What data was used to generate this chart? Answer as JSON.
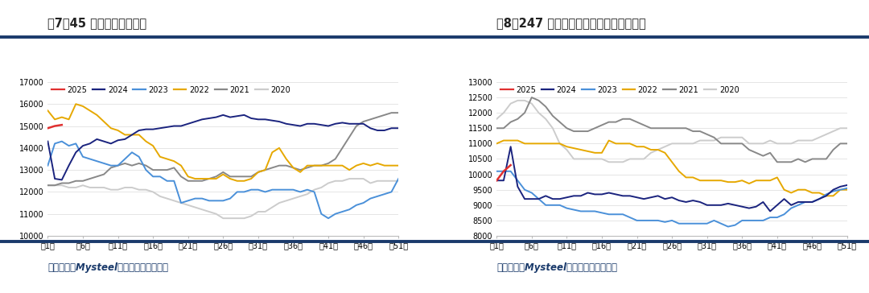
{
  "fig7_title": "图7：45 港口库存（万吨）",
  "fig8_title": "图8：247 家钢厂进口铁矿石库存（万吨）",
  "source_text": "数据来源：Mysteel，中信建投期货绘制",
  "x_ticks": [
    "第1周",
    "第6周",
    "第11周",
    "第16周",
    "第21周",
    "第26周",
    "第31周",
    "第36周",
    "第41周",
    "第46周",
    "第51周"
  ],
  "x_tick_positions": [
    1,
    6,
    11,
    16,
    21,
    26,
    31,
    36,
    41,
    46,
    51
  ],
  "colors": {
    "2025": "#e03030",
    "2024": "#1a237e",
    "2023": "#4a90d9",
    "2022": "#e6a800",
    "2021": "#888888",
    "2020": "#cccccc"
  },
  "fig7": {
    "ylim": [
      10000,
      17000
    ],
    "yticks": [
      10000,
      11000,
      12000,
      13000,
      14000,
      15000,
      16000,
      17000
    ],
    "data": {
      "2025": {
        "x": [
          1,
          2,
          3
        ],
        "y": [
          14900,
          15000,
          15050
        ]
      },
      "2024": {
        "x": [
          1,
          2,
          3,
          4,
          5,
          6,
          7,
          8,
          9,
          10,
          11,
          12,
          13,
          14,
          15,
          16,
          17,
          18,
          19,
          20,
          21,
          22,
          23,
          24,
          25,
          26,
          27,
          28,
          29,
          30,
          31,
          32,
          33,
          34,
          35,
          36,
          37,
          38,
          39,
          40,
          41,
          42,
          43,
          44,
          45,
          46,
          47,
          48,
          49,
          50,
          51
        ],
        "y": [
          14300,
          12600,
          12550,
          13200,
          13800,
          14100,
          14200,
          14400,
          14300,
          14200,
          14350,
          14400,
          14600,
          14800,
          14850,
          14850,
          14900,
          14950,
          15000,
          15000,
          15100,
          15200,
          15300,
          15350,
          15400,
          15500,
          15400,
          15450,
          15500,
          15350,
          15300,
          15300,
          15250,
          15200,
          15100,
          15050,
          15000,
          15100,
          15100,
          15050,
          15000,
          15100,
          15150,
          15100,
          15100,
          15100,
          14900,
          14800,
          14800,
          14900,
          14900
        ]
      },
      "2023": {
        "x": [
          1,
          2,
          3,
          4,
          5,
          6,
          7,
          8,
          9,
          10,
          11,
          12,
          13,
          14,
          15,
          16,
          17,
          18,
          19,
          20,
          21,
          22,
          23,
          24,
          25,
          26,
          27,
          28,
          29,
          30,
          31,
          32,
          33,
          34,
          35,
          36,
          37,
          38,
          39,
          40,
          41,
          42,
          43,
          44,
          45,
          46,
          47,
          48,
          49,
          50,
          51
        ],
        "y": [
          13200,
          14200,
          14300,
          14100,
          14200,
          13600,
          13500,
          13400,
          13300,
          13200,
          13200,
          13500,
          13800,
          13600,
          13000,
          12700,
          12700,
          12500,
          12500,
          11500,
          11600,
          11700,
          11700,
          11600,
          11600,
          11600,
          11700,
          12000,
          12000,
          12100,
          12100,
          12000,
          12100,
          12100,
          12100,
          12100,
          12000,
          12100,
          12000,
          11000,
          10800,
          11000,
          11100,
          11200,
          11400,
          11500,
          11700,
          11800,
          11900,
          12000,
          12600
        ]
      },
      "2022": {
        "x": [
          1,
          2,
          3,
          4,
          5,
          6,
          7,
          8,
          9,
          10,
          11,
          12,
          13,
          14,
          15,
          16,
          17,
          18,
          19,
          20,
          21,
          22,
          23,
          24,
          25,
          26,
          27,
          28,
          29,
          30,
          31,
          32,
          33,
          34,
          35,
          36,
          37,
          38,
          39,
          40,
          41,
          42,
          43,
          44,
          45,
          46,
          47,
          48,
          49,
          50,
          51
        ],
        "y": [
          15700,
          15300,
          15400,
          15300,
          16000,
          15900,
          15700,
          15500,
          15200,
          14900,
          14800,
          14600,
          14600,
          14600,
          14300,
          14100,
          13600,
          13500,
          13400,
          13200,
          12700,
          12600,
          12600,
          12600,
          12600,
          12800,
          12600,
          12500,
          12500,
          12600,
          12900,
          13000,
          13800,
          14000,
          13500,
          13100,
          12900,
          13200,
          13200,
          13200,
          13200,
          13200,
          13200,
          13000,
          13200,
          13300,
          13200,
          13300,
          13200,
          13200,
          13200
        ]
      },
      "2021": {
        "x": [
          1,
          2,
          3,
          4,
          5,
          6,
          7,
          8,
          9,
          10,
          11,
          12,
          13,
          14,
          15,
          16,
          17,
          18,
          19,
          20,
          21,
          22,
          23,
          24,
          25,
          26,
          27,
          28,
          29,
          30,
          31,
          32,
          33,
          34,
          35,
          36,
          37,
          38,
          39,
          40,
          41,
          42,
          43,
          44,
          45,
          46,
          47,
          48,
          49,
          50,
          51
        ],
        "y": [
          12300,
          12300,
          12400,
          12400,
          12500,
          12500,
          12600,
          12700,
          12800,
          13100,
          13200,
          13300,
          13200,
          13300,
          13200,
          13000,
          13000,
          13000,
          13100,
          12700,
          12500,
          12500,
          12500,
          12600,
          12700,
          12900,
          12700,
          12700,
          12700,
          12700,
          12900,
          13000,
          13100,
          13200,
          13200,
          13100,
          13000,
          13100,
          13200,
          13200,
          13300,
          13500,
          14000,
          14500,
          15000,
          15200,
          15300,
          15400,
          15500,
          15600,
          15600
        ]
      },
      "2020": {
        "x": [
          1,
          2,
          3,
          4,
          5,
          6,
          7,
          8,
          9,
          10,
          11,
          12,
          13,
          14,
          15,
          16,
          17,
          18,
          19,
          20,
          21,
          22,
          23,
          24,
          25,
          26,
          27,
          28,
          29,
          30,
          31,
          32,
          33,
          34,
          35,
          36,
          37,
          38,
          39,
          40,
          41,
          42,
          43,
          44,
          45,
          46,
          47,
          48,
          49,
          50,
          51
        ],
        "y": [
          12300,
          12300,
          12300,
          12200,
          12200,
          12300,
          12200,
          12200,
          12200,
          12100,
          12100,
          12200,
          12200,
          12100,
          12100,
          12000,
          11800,
          11700,
          11600,
          11500,
          11400,
          11300,
          11200,
          11100,
          11000,
          10800,
          10800,
          10800,
          10800,
          10900,
          11100,
          11100,
          11300,
          11500,
          11600,
          11700,
          11800,
          11900,
          12100,
          12200,
          12400,
          12500,
          12500,
          12600,
          12600,
          12600,
          12400,
          12500,
          12500,
          12500,
          12500
        ]
      }
    }
  },
  "fig8": {
    "ylim": [
      8000,
      13000
    ],
    "yticks": [
      8000,
      8500,
      9000,
      9500,
      10000,
      10500,
      11000,
      11500,
      12000,
      12500,
      13000
    ],
    "data": {
      "2025": {
        "x": [
          1,
          2,
          3
        ],
        "y": [
          9800,
          10100,
          10300
        ]
      },
      "2024": {
        "x": [
          1,
          2,
          3,
          4,
          5,
          6,
          7,
          8,
          9,
          10,
          11,
          12,
          13,
          14,
          15,
          16,
          17,
          18,
          19,
          20,
          21,
          22,
          23,
          24,
          25,
          26,
          27,
          28,
          29,
          30,
          31,
          32,
          33,
          34,
          35,
          36,
          37,
          38,
          39,
          40,
          41,
          42,
          43,
          44,
          45,
          46,
          47,
          48,
          49,
          50,
          51
        ],
        "y": [
          9800,
          9800,
          10900,
          9600,
          9200,
          9200,
          9200,
          9300,
          9200,
          9200,
          9250,
          9300,
          9300,
          9400,
          9350,
          9350,
          9400,
          9350,
          9300,
          9300,
          9250,
          9200,
          9250,
          9300,
          9200,
          9250,
          9150,
          9100,
          9150,
          9100,
          9000,
          9000,
          9000,
          9050,
          9000,
          8950,
          8900,
          8950,
          9100,
          8800,
          9000,
          9200,
          9000,
          9100,
          9100,
          9100,
          9200,
          9300,
          9500,
          9600,
          9650
        ]
      },
      "2023": {
        "x": [
          1,
          2,
          3,
          4,
          5,
          6,
          7,
          8,
          9,
          10,
          11,
          12,
          13,
          14,
          15,
          16,
          17,
          18,
          19,
          20,
          21,
          22,
          23,
          24,
          25,
          26,
          27,
          28,
          29,
          30,
          31,
          32,
          33,
          34,
          35,
          36,
          37,
          38,
          39,
          40,
          41,
          42,
          43,
          44,
          45,
          46,
          47,
          48,
          49,
          50,
          51
        ],
        "y": [
          10100,
          10100,
          10100,
          9800,
          9500,
          9400,
          9200,
          9000,
          9000,
          9000,
          8900,
          8850,
          8800,
          8800,
          8800,
          8750,
          8700,
          8700,
          8700,
          8600,
          8500,
          8500,
          8500,
          8500,
          8450,
          8500,
          8400,
          8400,
          8400,
          8400,
          8400,
          8500,
          8400,
          8300,
          8350,
          8500,
          8500,
          8500,
          8500,
          8600,
          8600,
          8700,
          8900,
          9000,
          9100,
          9100,
          9200,
          9350,
          9450,
          9500,
          9550
        ]
      },
      "2022": {
        "x": [
          1,
          2,
          3,
          4,
          5,
          6,
          7,
          8,
          9,
          10,
          11,
          12,
          13,
          14,
          15,
          16,
          17,
          18,
          19,
          20,
          21,
          22,
          23,
          24,
          25,
          26,
          27,
          28,
          29,
          30,
          31,
          32,
          33,
          34,
          35,
          36,
          37,
          38,
          39,
          40,
          41,
          42,
          43,
          44,
          45,
          46,
          47,
          48,
          49,
          50,
          51
        ],
        "y": [
          11000,
          11100,
          11100,
          11100,
          11000,
          11000,
          11000,
          11000,
          11000,
          11000,
          10900,
          10850,
          10800,
          10750,
          10700,
          10700,
          11100,
          11000,
          11000,
          11000,
          10900,
          10900,
          10800,
          10800,
          10700,
          10400,
          10100,
          9900,
          9900,
          9800,
          9800,
          9800,
          9800,
          9750,
          9750,
          9800,
          9700,
          9800,
          9800,
          9800,
          9900,
          9500,
          9400,
          9500,
          9500,
          9400,
          9400,
          9300,
          9300,
          9500,
          9500
        ]
      },
      "2021": {
        "x": [
          1,
          2,
          3,
          4,
          5,
          6,
          7,
          8,
          9,
          10,
          11,
          12,
          13,
          14,
          15,
          16,
          17,
          18,
          19,
          20,
          21,
          22,
          23,
          24,
          25,
          26,
          27,
          28,
          29,
          30,
          31,
          32,
          33,
          34,
          35,
          36,
          37,
          38,
          39,
          40,
          41,
          42,
          43,
          44,
          45,
          46,
          47,
          48,
          49,
          50,
          51
        ],
        "y": [
          11500,
          11500,
          11700,
          11800,
          12000,
          12500,
          12400,
          12200,
          11900,
          11700,
          11500,
          11400,
          11400,
          11400,
          11500,
          11600,
          11700,
          11700,
          11800,
          11800,
          11700,
          11600,
          11500,
          11500,
          11500,
          11500,
          11500,
          11500,
          11400,
          11400,
          11300,
          11200,
          11000,
          11000,
          11000,
          11000,
          10800,
          10700,
          10600,
          10700,
          10400,
          10400,
          10400,
          10500,
          10400,
          10500,
          10500,
          10500,
          10800,
          11000,
          11000
        ]
      },
      "2020": {
        "x": [
          1,
          2,
          3,
          4,
          5,
          6,
          7,
          8,
          9,
          10,
          11,
          12,
          13,
          14,
          15,
          16,
          17,
          18,
          19,
          20,
          21,
          22,
          23,
          24,
          25,
          26,
          27,
          28,
          29,
          30,
          31,
          32,
          33,
          34,
          35,
          36,
          37,
          38,
          39,
          40,
          41,
          42,
          43,
          44,
          45,
          46,
          47,
          48,
          49,
          50,
          51
        ],
        "y": [
          11800,
          12000,
          12300,
          12400,
          12400,
          12300,
          12000,
          11800,
          11500,
          11000,
          10800,
          10500,
          10500,
          10500,
          10500,
          10500,
          10400,
          10400,
          10400,
          10500,
          10500,
          10500,
          10700,
          10800,
          10900,
          11000,
          11000,
          11000,
          11000,
          11100,
          11100,
          11100,
          11200,
          11200,
          11200,
          11200,
          11000,
          11000,
          11000,
          11100,
          11000,
          11000,
          11000,
          11100,
          11100,
          11100,
          11200,
          11300,
          11400,
          11500,
          11500
        ]
      }
    }
  },
  "legend_order": [
    "2025",
    "2024",
    "2023",
    "2022",
    "2021",
    "2020"
  ],
  "background_color": "#ffffff",
  "divider_color": "#1a3a6b",
  "title_color": "#222222",
  "footer_color": "#1a3a6b"
}
